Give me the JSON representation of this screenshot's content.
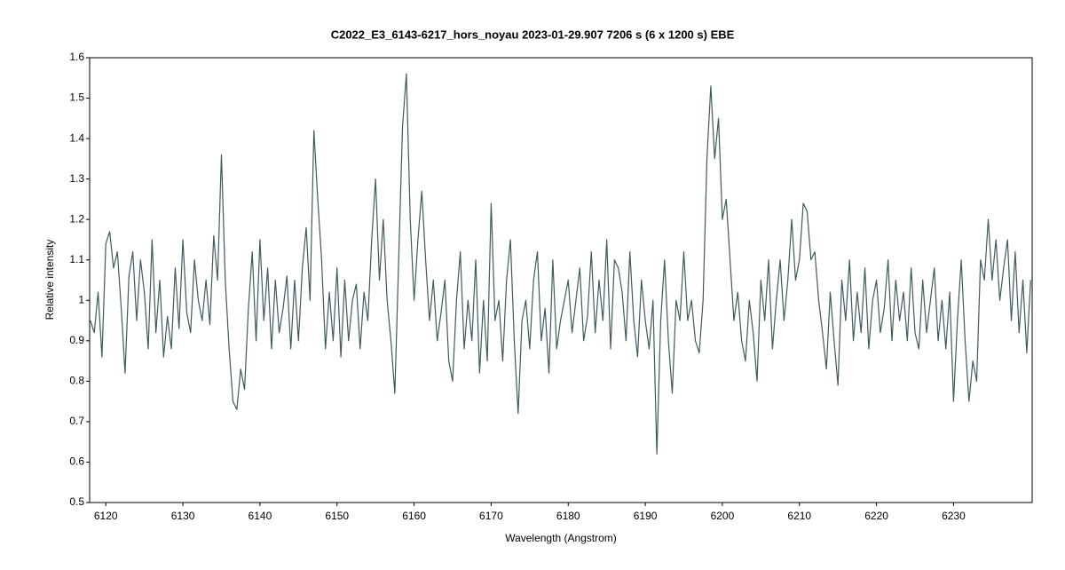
{
  "chart_data": {
    "type": "line",
    "title": "C2022_E3_6143-6217_hors_noyau  2023-01-29.907  7206 s (6 x 1200 s)  EBE",
    "xlabel": "Wavelength (Angstrom)",
    "ylabel": "Relative intensity",
    "xlim": [
      6117.9,
      6240.2
    ],
    "ylim": [
      0.5,
      1.6
    ],
    "xticks": [
      6120,
      6130,
      6140,
      6150,
      6160,
      6170,
      6180,
      6190,
      6200,
      6210,
      6220,
      6230
    ],
    "yticks": [
      0.5,
      0.6,
      0.7,
      0.8,
      0.9,
      1,
      1.1,
      1.2,
      1.3,
      1.4,
      1.5,
      1.6
    ],
    "grid": false,
    "x": [
      6118,
      6118.5,
      6119,
      6119.5,
      6120,
      6120.5,
      6121,
      6121.5,
      6122,
      6122.5,
      6123,
      6123.5,
      6124,
      6124.5,
      6125,
      6125.5,
      6126,
      6126.5,
      6127,
      6127.5,
      6128,
      6128.5,
      6129,
      6129.5,
      6130,
      6130.5,
      6131,
      6131.5,
      6132,
      6132.5,
      6133,
      6133.5,
      6134,
      6134.5,
      6135,
      6135.5,
      6136,
      6136.5,
      6137,
      6137.5,
      6138,
      6138.5,
      6139,
      6139.5,
      6140,
      6140.5,
      6141,
      6141.5,
      6142,
      6142.5,
      6143,
      6143.5,
      6144,
      6144.5,
      6145,
      6145.5,
      6146,
      6146.5,
      6147,
      6147.5,
      6148,
      6148.5,
      6149,
      6149.5,
      6150,
      6150.5,
      6151,
      6151.5,
      6152,
      6152.5,
      6153,
      6153.5,
      6154,
      6154.5,
      6155,
      6155.5,
      6156,
      6156.5,
      6157,
      6157.5,
      6158,
      6158.5,
      6159,
      6159.5,
      6160,
      6160.5,
      6161,
      6161.5,
      6162,
      6162.5,
      6163,
      6163.5,
      6164,
      6164.5,
      6165,
      6165.5,
      6166,
      6166.5,
      6167,
      6167.5,
      6168,
      6168.5,
      6169,
      6169.5,
      6170,
      6170.5,
      6171,
      6171.5,
      6172,
      6172.5,
      6173,
      6173.5,
      6174,
      6174.5,
      6175,
      6175.5,
      6176,
      6176.5,
      6177,
      6177.5,
      6178,
      6178.5,
      6179,
      6179.5,
      6180,
      6180.5,
      6181,
      6181.5,
      6182,
      6182.5,
      6183,
      6183.5,
      6184,
      6184.5,
      6185,
      6185.5,
      6186,
      6186.5,
      6187,
      6187.5,
      6188,
      6188.5,
      6189,
      6189.5,
      6190,
      6190.5,
      6191,
      6191.5,
      6192,
      6192.5,
      6193,
      6193.5,
      6194,
      6194.5,
      6195,
      6195.5,
      6196,
      6196.5,
      6197,
      6197.5,
      6198,
      6198.5,
      6199,
      6199.5,
      6200,
      6200.5,
      6201,
      6201.5,
      6202,
      6202.5,
      6203,
      6203.5,
      6204,
      6204.5,
      6205,
      6205.5,
      6206,
      6206.5,
      6207,
      6207.5,
      6208,
      6208.5,
      6209,
      6209.5,
      6210,
      6210.5,
      6211,
      6211.5,
      6212,
      6212.5,
      6213,
      6213.5,
      6214,
      6214.5,
      6215,
      6215.5,
      6216,
      6216.5,
      6217,
      6217.5,
      6218,
      6218.5,
      6219,
      6219.5,
      6220,
      6220.5,
      6221,
      6221.5,
      6222,
      6222.5,
      6223,
      6223.5,
      6224,
      6224.5,
      6225,
      6225.5,
      6226,
      6226.5,
      6227,
      6227.5,
      6228,
      6228.5,
      6229,
      6229.5,
      6230,
      6230.5,
      6231,
      6231.5,
      6232,
      6232.5,
      6233,
      6233.5,
      6234,
      6234.5,
      6235,
      6235.5,
      6236,
      6236.5,
      6237,
      6237.5,
      6238,
      6238.5,
      6239,
      6239.5,
      6240
    ],
    "series": [
      {
        "color": "#3f5b5c",
        "values": [
          0.95,
          0.92,
          1.02,
          0.86,
          1.14,
          1.17,
          1.08,
          1.12,
          0.98,
          0.82,
          1.06,
          1.12,
          0.95,
          1.1,
          1.02,
          0.88,
          1.15,
          0.92,
          1.05,
          0.86,
          0.96,
          0.88,
          1.08,
          0.93,
          1.15,
          0.97,
          0.92,
          1.1,
          1.0,
          0.95,
          1.05,
          0.94,
          1.16,
          1.05,
          1.36,
          1.05,
          0.88,
          0.75,
          0.73,
          0.83,
          0.78,
          0.98,
          1.12,
          0.9,
          1.15,
          0.95,
          1.08,
          0.88,
          1.05,
          0.92,
          0.98,
          1.06,
          0.88,
          1.05,
          0.9,
          1.08,
          1.18,
          1.0,
          1.42,
          1.25,
          1.1,
          0.88,
          1.02,
          0.9,
          1.08,
          0.86,
          1.05,
          0.9,
          1.0,
          1.04,
          0.88,
          1.02,
          0.95,
          1.15,
          1.3,
          1.05,
          1.2,
          1.0,
          0.9,
          0.77,
          1.1,
          1.43,
          1.56,
          1.2,
          1.0,
          1.15,
          1.27,
          1.1,
          0.95,
          1.05,
          0.9,
          0.97,
          1.05,
          0.85,
          0.8,
          1.0,
          1.12,
          0.88,
          1.0,
          0.9,
          1.1,
          0.82,
          1.0,
          0.85,
          1.24,
          0.95,
          1.0,
          0.85,
          1.05,
          1.15,
          0.9,
          0.72,
          0.95,
          1.0,
          0.88,
          1.05,
          1.12,
          0.9,
          0.98,
          0.82,
          1.1,
          0.88,
          0.95,
          1.0,
          1.05,
          0.92,
          1.0,
          1.08,
          0.9,
          0.96,
          1.12,
          0.92,
          1.05,
          0.95,
          1.15,
          0.88,
          1.1,
          1.08,
          1.02,
          0.9,
          1.12,
          0.95,
          0.86,
          1.05,
          0.95,
          0.88,
          1.0,
          0.62,
          0.95,
          1.1,
          0.9,
          0.77,
          1.0,
          0.95,
          1.12,
          0.95,
          1.0,
          0.9,
          0.87,
          1.0,
          1.35,
          1.53,
          1.35,
          1.45,
          1.2,
          1.25,
          1.1,
          0.95,
          1.02,
          0.9,
          0.85,
          1.0,
          0.92,
          0.8,
          1.05,
          0.95,
          1.1,
          0.88,
          1.0,
          1.1,
          0.95,
          1.05,
          1.2,
          1.05,
          1.1,
          1.24,
          1.22,
          1.1,
          1.12,
          1.0,
          0.92,
          0.83,
          1.02,
          0.9,
          0.79,
          1.05,
          0.95,
          1.1,
          0.9,
          1.02,
          0.92,
          1.08,
          0.88,
          1.0,
          1.05,
          0.92,
          0.98,
          1.1,
          0.9,
          1.05,
          0.95,
          1.02,
          0.9,
          1.08,
          0.92,
          0.88,
          1.05,
          0.92,
          1.0,
          1.08,
          0.9,
          1.0,
          0.88,
          1.02,
          0.75,
          0.95,
          1.1,
          0.9,
          0.75,
          0.85,
          0.8,
          1.1,
          1.05,
          1.2,
          1.05,
          1.15,
          1.0,
          1.08,
          1.15,
          0.95,
          1.12,
          0.92,
          1.05,
          0.87,
          1.05
        ]
      }
    ]
  }
}
